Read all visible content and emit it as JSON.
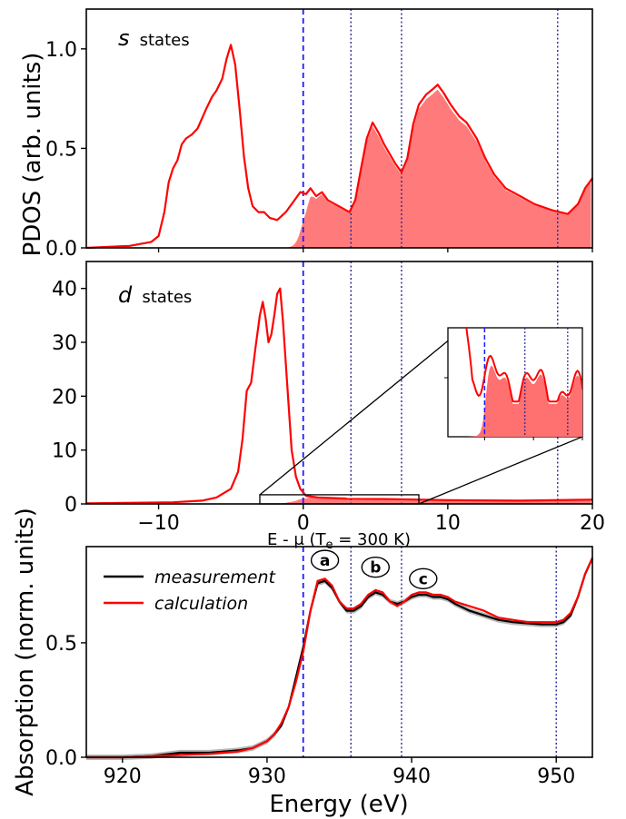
{
  "figure": {
    "shared_ylabel": "PDOS (arb. units)",
    "middle_xlabel": "E - μ (T",
    "middle_xlabel_sub": "e",
    "middle_xlabel_tail": " = 300 K)",
    "bottom_ylabel": "Absorption (norm. units)",
    "bottom_xlabel": "Energy (eV)"
  },
  "chart_data": [
    {
      "type": "area",
      "panel": "s-states",
      "label_italic": "s",
      "label_text": "states",
      "xlim": [
        -15,
        20
      ],
      "ylim": [
        0,
        1.2
      ],
      "yticks": [
        "0.0",
        "0.5",
        "1.0"
      ],
      "ytick_values": [
        0,
        0.5,
        1.0
      ],
      "series": [
        {
          "values": [
            [
              -15,
              0.0
            ],
            [
              -12,
              0.01
            ],
            [
              -10.5,
              0.03
            ],
            [
              -10.0,
              0.06
            ],
            [
              -9.6,
              0.18
            ],
            [
              -9.3,
              0.33
            ],
            [
              -9.0,
              0.4
            ],
            [
              -8.7,
              0.44
            ],
            [
              -8.4,
              0.52
            ],
            [
              -8.1,
              0.55
            ],
            [
              -7.7,
              0.57
            ],
            [
              -7.3,
              0.6
            ],
            [
              -7.0,
              0.65
            ],
            [
              -6.7,
              0.7
            ],
            [
              -6.3,
              0.76
            ],
            [
              -6.0,
              0.79
            ],
            [
              -5.6,
              0.85
            ],
            [
              -5.3,
              0.95
            ],
            [
              -5.0,
              1.02
            ],
            [
              -4.7,
              0.92
            ],
            [
              -4.4,
              0.7
            ],
            [
              -4.1,
              0.46
            ],
            [
              -3.8,
              0.3
            ],
            [
              -3.5,
              0.21
            ],
            [
              -3.1,
              0.18
            ],
            [
              -2.7,
              0.18
            ],
            [
              -2.3,
              0.15
            ],
            [
              -1.8,
              0.14
            ],
            [
              -1.2,
              0.18
            ],
            [
              -0.7,
              0.23
            ],
            [
              -0.2,
              0.28
            ],
            [
              0.2,
              0.27
            ],
            [
              0.5,
              0.3
            ],
            [
              0.9,
              0.26
            ],
            [
              1.3,
              0.28
            ],
            [
              1.7,
              0.24
            ],
            [
              2.2,
              0.22
            ],
            [
              2.7,
              0.2
            ],
            [
              3.2,
              0.18
            ],
            [
              3.6,
              0.24
            ],
            [
              4.0,
              0.4
            ],
            [
              4.4,
              0.55
            ],
            [
              4.8,
              0.63
            ],
            [
              5.2,
              0.58
            ],
            [
              5.6,
              0.52
            ],
            [
              6.0,
              0.47
            ],
            [
              6.4,
              0.42
            ],
            [
              6.8,
              0.38
            ],
            [
              7.2,
              0.45
            ],
            [
              7.6,
              0.62
            ],
            [
              8.0,
              0.72
            ],
            [
              8.5,
              0.77
            ],
            [
              9.0,
              0.8
            ],
            [
              9.3,
              0.82
            ],
            [
              9.7,
              0.78
            ],
            [
              10.2,
              0.72
            ],
            [
              10.8,
              0.66
            ],
            [
              11.3,
              0.63
            ],
            [
              12.0,
              0.55
            ],
            [
              12.6,
              0.45
            ],
            [
              13.2,
              0.37
            ],
            [
              14.0,
              0.3
            ],
            [
              15.0,
              0.26
            ],
            [
              16.0,
              0.22
            ],
            [
              17.2,
              0.19
            ],
            [
              18.3,
              0.17
            ],
            [
              19.0,
              0.22
            ],
            [
              19.5,
              0.3
            ],
            [
              20.0,
              0.35
            ]
          ]
        }
      ],
      "vlines": {
        "dashed": [
          0
        ],
        "dotted": [
          3.3,
          6.8,
          17.6
        ]
      }
    },
    {
      "type": "area",
      "panel": "d-states",
      "label_italic": "d",
      "label_text": "states",
      "xlim": [
        -15,
        20
      ],
      "ylim": [
        0,
        45
      ],
      "yticks": [
        "0",
        "10",
        "20",
        "30",
        "40"
      ],
      "ytick_values": [
        0,
        10,
        20,
        30,
        40
      ],
      "xticks": [
        "−10",
        "0",
        "10",
        "20"
      ],
      "xtick_values": [
        -10,
        0,
        10,
        20
      ],
      "series": [
        {
          "values": [
            [
              -15,
              0.1
            ],
            [
              -9,
              0.3
            ],
            [
              -7,
              0.6
            ],
            [
              -6,
              1.2
            ],
            [
              -5,
              2.8
            ],
            [
              -4.5,
              6
            ],
            [
              -4.2,
              12
            ],
            [
              -3.9,
              21
            ],
            [
              -3.6,
              22.5
            ],
            [
              -3.3,
              29
            ],
            [
              -3.0,
              35
            ],
            [
              -2.8,
              37.5
            ],
            [
              -2.6,
              34.5
            ],
            [
              -2.4,
              30
            ],
            [
              -2.2,
              31.5
            ],
            [
              -2.0,
              35
            ],
            [
              -1.8,
              39
            ],
            [
              -1.6,
              40
            ],
            [
              -1.4,
              34
            ],
            [
              -1.1,
              22
            ],
            [
              -0.8,
              10
            ],
            [
              -0.5,
              5
            ],
            [
              -0.2,
              2.8
            ],
            [
              0.2,
              1.5
            ],
            [
              1.0,
              1.2
            ],
            [
              3.0,
              1.0
            ],
            [
              6.0,
              0.9
            ],
            [
              10.0,
              0.7
            ],
            [
              15.0,
              0.6
            ],
            [
              20.0,
              0.8
            ]
          ]
        }
      ],
      "vlines": {
        "dashed": [
          0
        ],
        "dotted": [
          3.3,
          6.8,
          17.6
        ]
      },
      "inset_region": {
        "x": [
          -3.0,
          8.0
        ],
        "y": [
          0,
          1.7
        ]
      }
    },
    {
      "type": "line",
      "panel": "absorption",
      "xlim": [
        917.5,
        952.5
      ],
      "ylim": [
        0,
        0.92
      ],
      "xticks": [
        "920",
        "930",
        "940",
        "950"
      ],
      "xtick_values": [
        920,
        930,
        940,
        950
      ],
      "yticks": [
        "0.0",
        "0.5"
      ],
      "ytick_values": [
        0,
        0.5
      ],
      "series": [
        {
          "name": "measurement",
          "color": "#000000",
          "values": [
            [
              917.5,
              0.0
            ],
            [
              920,
              0.0
            ],
            [
              922,
              0.005
            ],
            [
              924,
              0.02
            ],
            [
              926,
              0.02
            ],
            [
              928,
              0.03
            ],
            [
              929,
              0.04
            ],
            [
              930,
              0.07
            ],
            [
              930.5,
              0.1
            ],
            [
              931,
              0.14
            ],
            [
              931.5,
              0.22
            ],
            [
              932,
              0.35
            ],
            [
              932.5,
              0.48
            ],
            [
              933,
              0.64
            ],
            [
              933.5,
              0.76
            ],
            [
              934,
              0.77
            ],
            [
              934.5,
              0.74
            ],
            [
              935,
              0.68
            ],
            [
              935.5,
              0.64
            ],
            [
              936,
              0.64
            ],
            [
              936.5,
              0.66
            ],
            [
              937,
              0.7
            ],
            [
              937.5,
              0.72
            ],
            [
              938,
              0.71
            ],
            [
              938.5,
              0.68
            ],
            [
              939,
              0.67
            ],
            [
              939.5,
              0.68
            ],
            [
              940,
              0.7
            ],
            [
              940.5,
              0.71
            ],
            [
              941,
              0.71
            ],
            [
              941.5,
              0.7
            ],
            [
              942,
              0.7
            ],
            [
              942.5,
              0.69
            ],
            [
              943,
              0.67
            ],
            [
              944,
              0.64
            ],
            [
              945,
              0.62
            ],
            [
              946,
              0.6
            ],
            [
              947,
              0.59
            ],
            [
              948,
              0.585
            ],
            [
              949,
              0.58
            ],
            [
              950,
              0.58
            ],
            [
              950.5,
              0.59
            ],
            [
              951,
              0.62
            ],
            [
              951.5,
              0.7
            ],
            [
              952,
              0.8
            ],
            [
              952.5,
              0.87
            ]
          ]
        },
        {
          "name": "calculation",
          "color": "#ff0000",
          "values": [
            [
              917.5,
              0.0
            ],
            [
              920,
              0.0
            ],
            [
              922,
              0.005
            ],
            [
              924,
              0.01
            ],
            [
              926,
              0.015
            ],
            [
              928,
              0.025
            ],
            [
              929,
              0.04
            ],
            [
              930,
              0.07
            ],
            [
              930.5,
              0.1
            ],
            [
              931,
              0.15
            ],
            [
              931.5,
              0.22
            ],
            [
              932,
              0.33
            ],
            [
              932.5,
              0.46
            ],
            [
              933,
              0.64
            ],
            [
              933.5,
              0.77
            ],
            [
              934,
              0.78
            ],
            [
              934.5,
              0.75
            ],
            [
              935,
              0.68
            ],
            [
              935.5,
              0.65
            ],
            [
              936,
              0.65
            ],
            [
              936.5,
              0.67
            ],
            [
              937,
              0.71
            ],
            [
              937.5,
              0.73
            ],
            [
              938,
              0.72
            ],
            [
              938.5,
              0.68
            ],
            [
              939,
              0.66
            ],
            [
              939.5,
              0.68
            ],
            [
              940,
              0.71
            ],
            [
              940.5,
              0.72
            ],
            [
              941,
              0.72
            ],
            [
              941.5,
              0.71
            ],
            [
              942,
              0.71
            ],
            [
              942.5,
              0.7
            ],
            [
              943,
              0.68
            ],
            [
              944,
              0.66
            ],
            [
              945,
              0.64
            ],
            [
              946,
              0.61
            ],
            [
              947,
              0.6
            ],
            [
              948,
              0.59
            ],
            [
              949,
              0.59
            ],
            [
              950,
              0.59
            ],
            [
              950.5,
              0.6
            ],
            [
              951,
              0.63
            ],
            [
              951.5,
              0.7
            ],
            [
              952,
              0.8
            ],
            [
              952.5,
              0.87
            ]
          ]
        }
      ],
      "vlines": {
        "dashed": [
          932.5
        ],
        "dotted": [
          935.8,
          939.3,
          950.0
        ]
      },
      "annotations": [
        {
          "label": "a",
          "x": 934.0,
          "y": 0.86
        },
        {
          "label": "b",
          "x": 937.5,
          "y": 0.83
        },
        {
          "label": "c",
          "x": 940.8,
          "y": 0.78
        }
      ],
      "legend": {
        "placement": "top-left",
        "entries": [
          "measurement",
          "calculation"
        ]
      }
    }
  ]
}
